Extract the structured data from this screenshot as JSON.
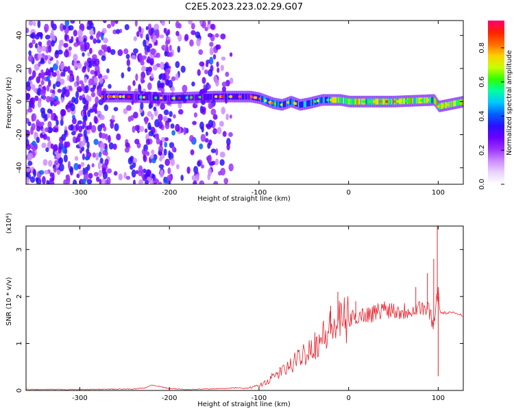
{
  "title": "C2E5.2023.223.02.29.G07",
  "colors": {
    "snr_line": "#e8202a",
    "colormap": [
      "#ffffff",
      "#ead4ff",
      "#cc8cff",
      "#9a33ff",
      "#6a00ff",
      "#2a10ff",
      "#0060ff",
      "#00c8ff",
      "#00ffa0",
      "#30ff00",
      "#c8ff00",
      "#ffd000",
      "#ff6a00",
      "#ff2000",
      "#ff0070"
    ]
  },
  "chart_data": [
    {
      "type": "heatmap",
      "xlabel": "Height of straight line (km)",
      "ylabel": "Frequency (Hz)",
      "xlim": [
        -360,
        128
      ],
      "ylim": [
        -50,
        49
      ],
      "xticks": [
        -300,
        -200,
        -100,
        0,
        100
      ],
      "xticklabels": [
        "-300",
        "-200",
        "-100",
        "0",
        "100"
      ],
      "yticks": [
        -40,
        -20,
        0,
        20,
        40
      ],
      "yticklabels": [
        "-40",
        "-20",
        "0",
        "20",
        "40"
      ],
      "ridge": {
        "x": [
          -275,
          -250,
          -200,
          -150,
          -130,
          -110,
          -100,
          -85,
          -75,
          -65,
          -55,
          -45,
          -30,
          -10,
          0,
          50,
          95,
          100,
          128
        ],
        "frequency": [
          3,
          3,
          2,
          3,
          3,
          3,
          2,
          -1,
          -2,
          0,
          -2,
          -1,
          1,
          1,
          0,
          0,
          1,
          -3,
          0
        ]
      },
      "colorbar": {
        "label": "Normalized spectral amplitude",
        "range": [
          0,
          0.96
        ],
        "ticks": [
          0.0,
          0.2,
          0.4,
          0.6,
          0.8
        ],
        "ticklabels": [
          "0.0",
          "0.2",
          "0.4",
          "0.6",
          "0.8"
        ]
      }
    },
    {
      "type": "line",
      "xlabel": "Height of straight line (km)",
      "ylabel": "SNR (10 * v/v)",
      "yscale_label": "(x10⁴)",
      "xlim": [
        -360,
        128
      ],
      "ylim": [
        0,
        3.5
      ],
      "xticks": [
        -300,
        -200,
        -100,
        0,
        100
      ],
      "xticklabels": [
        "-300",
        "-200",
        "-100",
        "0",
        "100"
      ],
      "yticks": [
        0,
        1,
        2,
        3
      ],
      "yticklabels": [
        "0",
        "1",
        "2",
        "3"
      ],
      "series": [
        {
          "x": [
            -360,
            -300,
            -240,
            -225,
            -220,
            -200,
            -180,
            -160,
            -140,
            -125,
            -115,
            -100,
            -90,
            -80,
            -70,
            -60,
            -50,
            -40,
            -30,
            -20,
            -10,
            0,
            10,
            20,
            30,
            40,
            50,
            60,
            70,
            80,
            90,
            95,
            100,
            102,
            110,
            120,
            128
          ],
          "values": [
            0.02,
            0.02,
            0.03,
            0.06,
            0.12,
            0.04,
            0.02,
            0.03,
            0.04,
            0.06,
            0.04,
            0.1,
            0.2,
            0.35,
            0.45,
            0.6,
            0.8,
            0.95,
            1.1,
            1.3,
            1.45,
            1.5,
            1.58,
            1.62,
            1.65,
            1.75,
            1.72,
            1.68,
            1.74,
            1.78,
            1.7,
            1.4,
            2.2,
            1.65,
            1.65,
            1.65,
            1.6
          ],
          "spikes": [
            {
              "x": -20,
              "value": 1.8
            },
            {
              "x": -12,
              "value": 2.1
            },
            {
              "x": 8,
              "value": 1.9
            },
            {
              "x": 75,
              "value": 2.2
            },
            {
              "x": 88,
              "value": 2.5
            },
            {
              "x": 95,
              "value": 2.8
            },
            {
              "x": 99,
              "value": 3.5
            },
            {
              "x": 100,
              "value": 0.3
            }
          ]
        }
      ]
    }
  ]
}
